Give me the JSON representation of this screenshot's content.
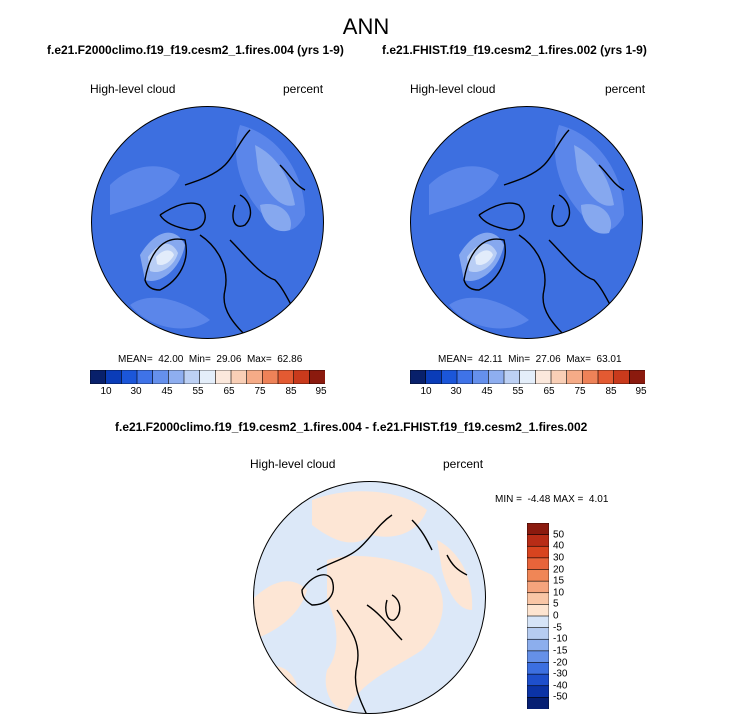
{
  "figure": {
    "title": "ANN"
  },
  "panels": [
    {
      "title": "f.e21.F2000climo.f19_f19.cesm2_1.fires.004 (yrs 1-9)",
      "left_label": "High-level cloud",
      "right_label": "percent",
      "stats": "MEAN=  42.00  Min=  29.06  Max=  62.86"
    },
    {
      "title": "f.e21.FHIST.f19_f19.cesm2_1.fires.002 (yrs 1-9)",
      "left_label": "High-level cloud",
      "right_label": "percent",
      "stats": "MEAN=  42.11  Min=  27.06  Max=  63.01"
    }
  ],
  "diff_panel": {
    "title": "f.e21.F2000climo.f19_f19.cesm2_1.fires.004 - f.e21.FHIST.f19_f19.cesm2_1.fires.002",
    "left_label": "High-level cloud",
    "right_label": "percent",
    "stats": "MIN =  -4.48 MAX =  4.01"
  },
  "colorbar_main": {
    "labels": [
      "10",
      "30",
      "45",
      "55",
      "65",
      "75",
      "85",
      "95"
    ],
    "colors": [
      "#08206b",
      "#0a3cb8",
      "#1b56d9",
      "#3f73e8",
      "#6590ec",
      "#8eaef0",
      "#bcd0f4",
      "#e4eefa",
      "#fbe8dc",
      "#f9cfb6",
      "#f5ab87",
      "#ee8258",
      "#e35a32",
      "#c93a1c",
      "#8b1a0e"
    ]
  },
  "colorbar_diff": {
    "labels": [
      "50",
      "40",
      "30",
      "20",
      "15",
      "10",
      "5",
      "0",
      "-5",
      "-10",
      "-15",
      "-20",
      "-30",
      "-40",
      "-50"
    ],
    "colors": [
      "#8b1a0e",
      "#b82c16",
      "#d8441f",
      "#e8643a",
      "#f08656",
      "#f5a47d",
      "#f9c6a6",
      "#fde4d0",
      "#d6e4f7",
      "#b6ccf1",
      "#8caeed",
      "#6590e8",
      "#3c6fe0",
      "#1e4fcc",
      "#0b33a6",
      "#061f73"
    ]
  },
  "map_colors": {
    "main_base": "#3d6fe0",
    "main_mid": "#5b86ea",
    "main_light": "#86a8ef",
    "main_lighter": "#b9cef5",
    "main_pale": "#e2ecfb",
    "diff_neg": "#dce8f8",
    "diff_pos": "#fde6d5"
  }
}
